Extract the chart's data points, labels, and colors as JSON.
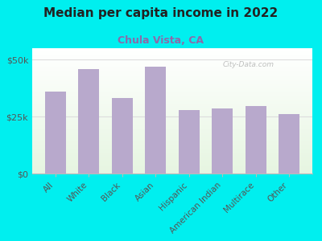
{
  "title": "Median per capita income in 2022",
  "subtitle": "Chula Vista, CA",
  "categories": [
    "All",
    "White",
    "Black",
    "Asian",
    "Hispanic",
    "American Indian",
    "Multirace",
    "Other"
  ],
  "values": [
    36000,
    46000,
    33000,
    47000,
    28000,
    28500,
    29500,
    26000
  ],
  "bar_color": "#b8a9cc",
  "background_outer": "#00efef",
  "title_color": "#222222",
  "subtitle_color": "#8b6aaa",
  "tick_label_color": "#555555",
  "yticks": [
    0,
    25000,
    50000
  ],
  "ytick_labels": [
    "$0",
    "$25k",
    "$50k"
  ],
  "ylim": [
    0,
    55000
  ],
  "watermark": "City-Data.com",
  "grid_color": "#dddddd",
  "spine_color": "#bbbbbb"
}
